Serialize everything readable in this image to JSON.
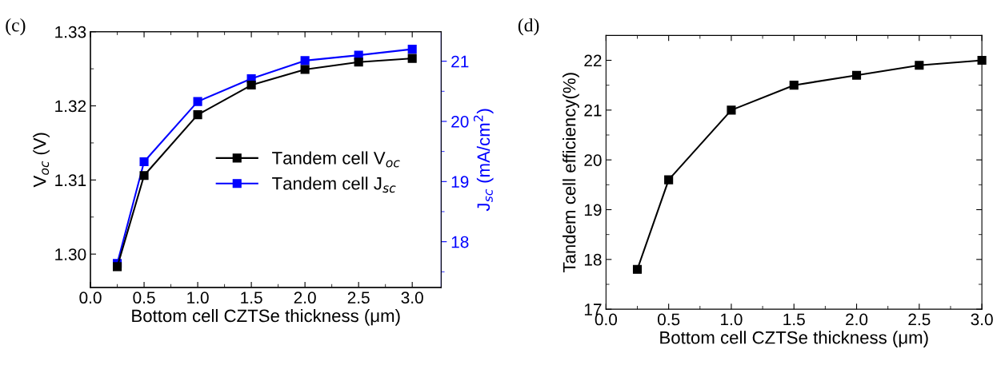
{
  "chart_data": [
    {
      "type": "line",
      "annotations": [
        "(c)"
      ],
      "xlabel": "Bottom cell CZTSe thickness (μm)",
      "ylabel": "V$_{oc}$ (V)",
      "y2label": "J$_{sc}$ (mA/cm$^{2}$)",
      "x": [
        0.25,
        0.5,
        1.0,
        1.5,
        2.0,
        2.5,
        3.0
      ],
      "series": [
        {
          "name": "Tandem cell V$_{oc}$",
          "color": "#000000",
          "values": [
            1.2983,
            1.3106,
            1.3188,
            1.3228,
            1.3249,
            1.3259,
            1.3264
          ]
        },
        {
          "name": "Tandem cell J$_{sc}$",
          "color": "#0000ff",
          "axis": "y2",
          "values": [
            17.64,
            19.33,
            20.33,
            20.71,
            21.01,
            21.1,
            21.2
          ]
        }
      ],
      "xlim": [
        0,
        3.27
      ],
      "xticks": [
        {
          "value": 0.0,
          "label": "0.0"
        },
        {
          "value": 0.25,
          "label": null
        },
        {
          "value": 0.5,
          "label": "0.5"
        },
        {
          "value": 0.75,
          "label": null
        },
        {
          "value": 1.0,
          "label": "1.0"
        },
        {
          "value": 1.25,
          "label": null
        },
        {
          "value": 1.5,
          "label": "1.5"
        },
        {
          "value": 1.75,
          "label": null
        },
        {
          "value": 2.0,
          "label": "2.0"
        },
        {
          "value": 2.25,
          "label": null
        },
        {
          "value": 2.5,
          "label": "2.5"
        },
        {
          "value": 2.75,
          "label": null
        },
        {
          "value": 3.0,
          "label": "3.0"
        }
      ],
      "ylim": [
        1.2955,
        1.33
      ],
      "yticks": [
        {
          "value": 1.3,
          "label": "1.30"
        },
        {
          "value": 1.305,
          "label": null
        },
        {
          "value": 1.31,
          "label": "1.31"
        },
        {
          "value": 1.315,
          "label": null
        },
        {
          "value": 1.32,
          "label": "1.32"
        },
        {
          "value": 1.325,
          "label": null
        },
        {
          "value": 1.33,
          "label": "1.33"
        }
      ],
      "y2lim": [
        17.24,
        21.49
      ],
      "y2ticks": [
        {
          "value": 17.5,
          "label": null
        },
        18,
        {
          "value": 18.5,
          "label": null
        },
        19,
        {
          "value": 19.5,
          "label": null
        },
        20,
        {
          "value": 20.5,
          "label": null
        },
        21
      ],
      "marker": "square",
      "line_style": "solid",
      "legend": "right",
      "grid": false
    },
    {
      "type": "line",
      "annotations": [
        "(d)"
      ],
      "xlabel": "Bottom cell CZTSe thickness (μm)",
      "ylabel": "Tandem cell efficiency(%)",
      "x": [
        0.25,
        0.5,
        1.0,
        1.5,
        2.0,
        2.5,
        3.0
      ],
      "series": [
        {
          "color": "#000000",
          "values": [
            17.8,
            19.6,
            21.0,
            21.5,
            21.7,
            21.9,
            22.0
          ]
        }
      ],
      "xlim": [
        0,
        3.0
      ],
      "xticks": [
        {
          "value": 0.0,
          "label": "0.0"
        },
        {
          "value": 0.25,
          "label": null
        },
        {
          "value": 0.5,
          "label": "0.5"
        },
        {
          "value": 0.75,
          "label": null
        },
        {
          "value": 1.0,
          "label": "1.0"
        },
        {
          "value": 1.25,
          "label": null
        },
        {
          "value": 1.5,
          "label": "1.5"
        },
        {
          "value": 1.75,
          "label": null
        },
        {
          "value": 2.0,
          "label": "2.0"
        },
        {
          "value": 2.25,
          "label": null
        },
        {
          "value": 2.5,
          "label": "2.5"
        },
        {
          "value": 2.75,
          "label": null
        },
        {
          "value": 3.0,
          "label": "3.0"
        }
      ],
      "ylim": [
        17,
        22.5
      ],
      "yticks": [
        17,
        {
          "value": 17.5,
          "label": null
        },
        18,
        {
          "value": 18.5,
          "label": null
        },
        19,
        {
          "value": 19.5,
          "label": null
        },
        20,
        {
          "value": 20.5,
          "label": null
        },
        21,
        {
          "value": 21.5,
          "label": null
        },
        22
      ],
      "marker": "square",
      "line_style": "solid",
      "grid": false
    }
  ]
}
